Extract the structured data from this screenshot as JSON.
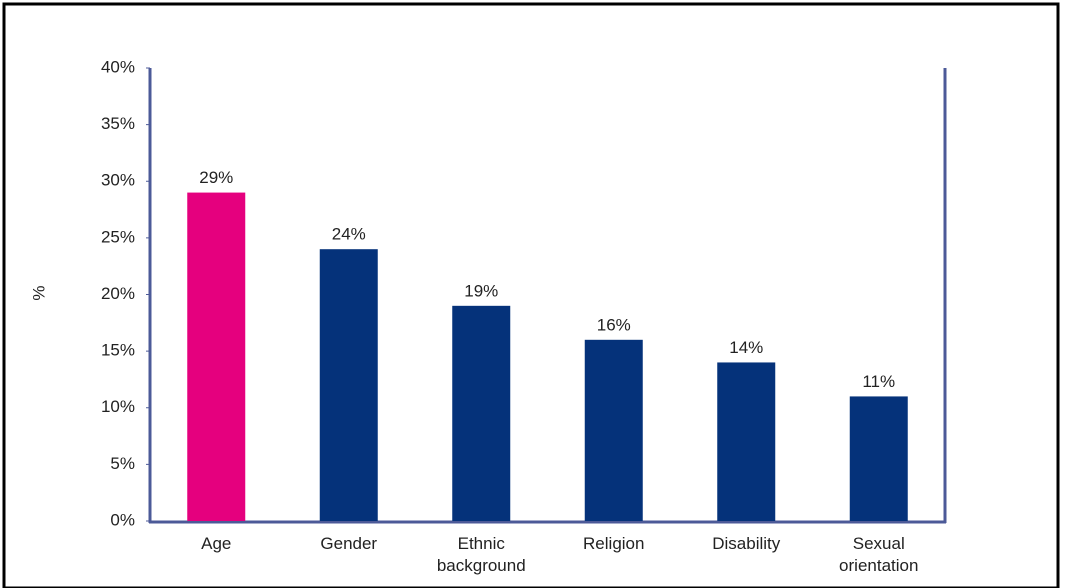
{
  "chart_data": {
    "type": "bar",
    "y_label": "%",
    "categories": [
      "Age",
      "Gender",
      "Ethnic background",
      "Religion",
      "Disability",
      "Sexual orientation"
    ],
    "values": [
      29,
      24,
      19,
      16,
      14,
      11
    ],
    "value_labels": [
      "29%",
      "24%",
      "19%",
      "16%",
      "14%",
      "11%"
    ],
    "colors": [
      "#e5007e",
      "#05327a",
      "#05327a",
      "#05327a",
      "#05327a",
      "#05327a"
    ],
    "ylim": [
      0,
      40
    ],
    "yticks": [
      {
        "value": 0,
        "label": "0%"
      },
      {
        "value": 5,
        "label": "5%"
      },
      {
        "value": 10,
        "label": "10%"
      },
      {
        "value": 15,
        "label": "15%"
      },
      {
        "value": 20,
        "label": "20%"
      },
      {
        "value": 25,
        "label": "25%"
      },
      {
        "value": 30,
        "label": "30%"
      },
      {
        "value": 35,
        "label": "35%"
      },
      {
        "value": 40,
        "label": "40%"
      }
    ],
    "grid": false
  }
}
